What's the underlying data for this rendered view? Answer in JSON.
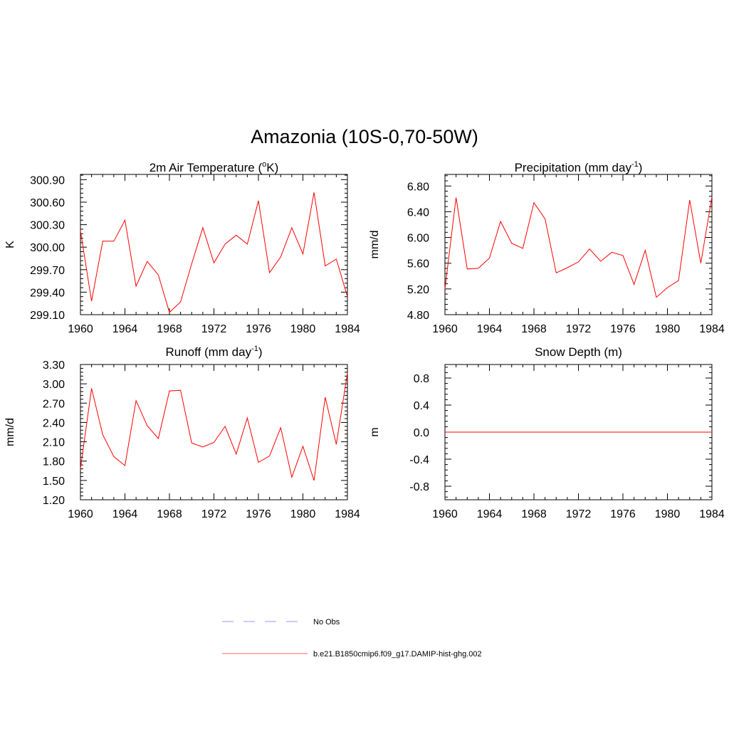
{
  "figure": {
    "title": "Amazonia (10S-0,70-50W)"
  },
  "legend": {
    "entries": [
      {
        "label": "No Obs",
        "color": "#9999ff",
        "style": "dashed"
      },
      {
        "label": "b.e21.B1850cmip6.f09_g17.DAMIP-hist-ghg.002",
        "color": "#ff6666",
        "style": "solid"
      }
    ]
  },
  "chart_data": [
    {
      "type": "line",
      "title": "2m Air Temperature (",
      "title_sup": "o",
      "title_tail": "K)",
      "ylabel": "K",
      "xlim": [
        1960,
        1984
      ],
      "ylim": [
        299.1,
        300.97
      ],
      "x_ticks": [
        "1960",
        "1964",
        "1968",
        "1972",
        "1976",
        "1980",
        "1984"
      ],
      "y_ticks": [
        299.1,
        299.4,
        299.7,
        300.0,
        300.3,
        300.6,
        300.9
      ],
      "y_tick_labels": [
        "299.10",
        "299.40",
        "299.70",
        "300.00",
        "300.30",
        "300.60",
        "300.90"
      ],
      "series": [
        {
          "color": "#ff0000",
          "x": [
            1960,
            1961,
            1962,
            1963,
            1964,
            1965,
            1966,
            1967,
            1968,
            1969,
            1970,
            1971,
            1972,
            1973,
            1974,
            1975,
            1976,
            1977,
            1978,
            1979,
            1980,
            1981,
            1982,
            1983,
            1984
          ],
          "values": [
            300.22,
            299.28,
            300.08,
            300.08,
            300.36,
            299.48,
            299.81,
            299.63,
            299.13,
            299.27,
            299.78,
            300.26,
            299.79,
            300.04,
            300.16,
            300.04,
            300.62,
            299.66,
            299.87,
            300.26,
            299.91,
            300.73,
            299.75,
            299.84,
            299.34
          ]
        }
      ]
    },
    {
      "type": "line",
      "title": "Precipitation (mm day",
      "title_sup": "-1",
      "title_tail": ")",
      "ylabel": "mm/d",
      "xlim": [
        1960,
        1984
      ],
      "ylim": [
        4.8,
        6.98
      ],
      "x_ticks": [
        "1960",
        "1964",
        "1968",
        "1972",
        "1976",
        "1980",
        "1984"
      ],
      "y_ticks": [
        4.8,
        5.2,
        5.6,
        6.0,
        6.4,
        6.8
      ],
      "y_tick_labels": [
        "4.80",
        "5.20",
        "5.60",
        "6.00",
        "6.40",
        "6.80"
      ],
      "series": [
        {
          "color": "#ff0000",
          "x": [
            1960,
            1961,
            1962,
            1963,
            1964,
            1965,
            1966,
            1967,
            1968,
            1969,
            1970,
            1971,
            1972,
            1973,
            1974,
            1975,
            1976,
            1977,
            1978,
            1979,
            1980,
            1981,
            1982,
            1983,
            1984
          ],
          "values": [
            5.2,
            6.62,
            5.51,
            5.52,
            5.68,
            6.25,
            5.91,
            5.83,
            6.54,
            6.29,
            5.45,
            5.53,
            5.62,
            5.82,
            5.63,
            5.77,
            5.72,
            5.27,
            5.8,
            5.07,
            5.22,
            5.33,
            6.58,
            5.6,
            6.63
          ]
        }
      ]
    },
    {
      "type": "line",
      "title": "Runoff (mm day",
      "title_sup": "-1",
      "title_tail": ")",
      "ylabel": "mm/d",
      "xlim": [
        1960,
        1984
      ],
      "ylim": [
        1.2,
        3.3
      ],
      "x_ticks": [
        "1960",
        "1964",
        "1968",
        "1972",
        "1976",
        "1980",
        "1984"
      ],
      "y_ticks": [
        1.2,
        1.5,
        1.8,
        2.1,
        2.4,
        2.7,
        3.0,
        3.3
      ],
      "y_tick_labels": [
        "1.20",
        "1.50",
        "1.80",
        "2.10",
        "2.40",
        "2.70",
        "3.00",
        "3.30"
      ],
      "series": [
        {
          "color": "#ff0000",
          "x": [
            1960,
            1961,
            1962,
            1963,
            1964,
            1965,
            1966,
            1967,
            1968,
            1969,
            1970,
            1971,
            1972,
            1973,
            1974,
            1975,
            1976,
            1977,
            1978,
            1979,
            1980,
            1981,
            1982,
            1983,
            1984
          ],
          "values": [
            1.68,
            2.93,
            2.21,
            1.87,
            1.73,
            2.74,
            2.35,
            2.15,
            2.89,
            2.9,
            2.08,
            2.02,
            2.09,
            2.34,
            1.91,
            2.47,
            1.78,
            1.88,
            2.32,
            1.55,
            2.03,
            1.5,
            2.79,
            2.06,
            3.17
          ]
        }
      ]
    },
    {
      "type": "line",
      "title": "Snow Depth (m)",
      "title_sup": "",
      "title_tail": "",
      "ylabel": "m",
      "xlim": [
        1960,
        1984
      ],
      "ylim": [
        -1.0,
        1.0
      ],
      "x_ticks": [
        "1960",
        "1964",
        "1968",
        "1972",
        "1976",
        "1980",
        "1984"
      ],
      "y_ticks": [
        -0.8,
        -0.4,
        0.0,
        0.4,
        0.8
      ],
      "y_tick_labels": [
        "-0.8",
        "-0.4",
        "0.0",
        "0.4",
        "0.8"
      ],
      "series": [
        {
          "color": "#ff0000",
          "x": [
            1960,
            1961,
            1962,
            1963,
            1964,
            1965,
            1966,
            1967,
            1968,
            1969,
            1970,
            1971,
            1972,
            1973,
            1974,
            1975,
            1976,
            1977,
            1978,
            1979,
            1980,
            1981,
            1982,
            1983,
            1984
          ],
          "values": [
            0,
            0,
            0,
            0,
            0,
            0,
            0,
            0,
            0,
            0,
            0,
            0,
            0,
            0,
            0,
            0,
            0,
            0,
            0,
            0,
            0,
            0,
            0,
            0,
            0
          ]
        }
      ]
    }
  ]
}
